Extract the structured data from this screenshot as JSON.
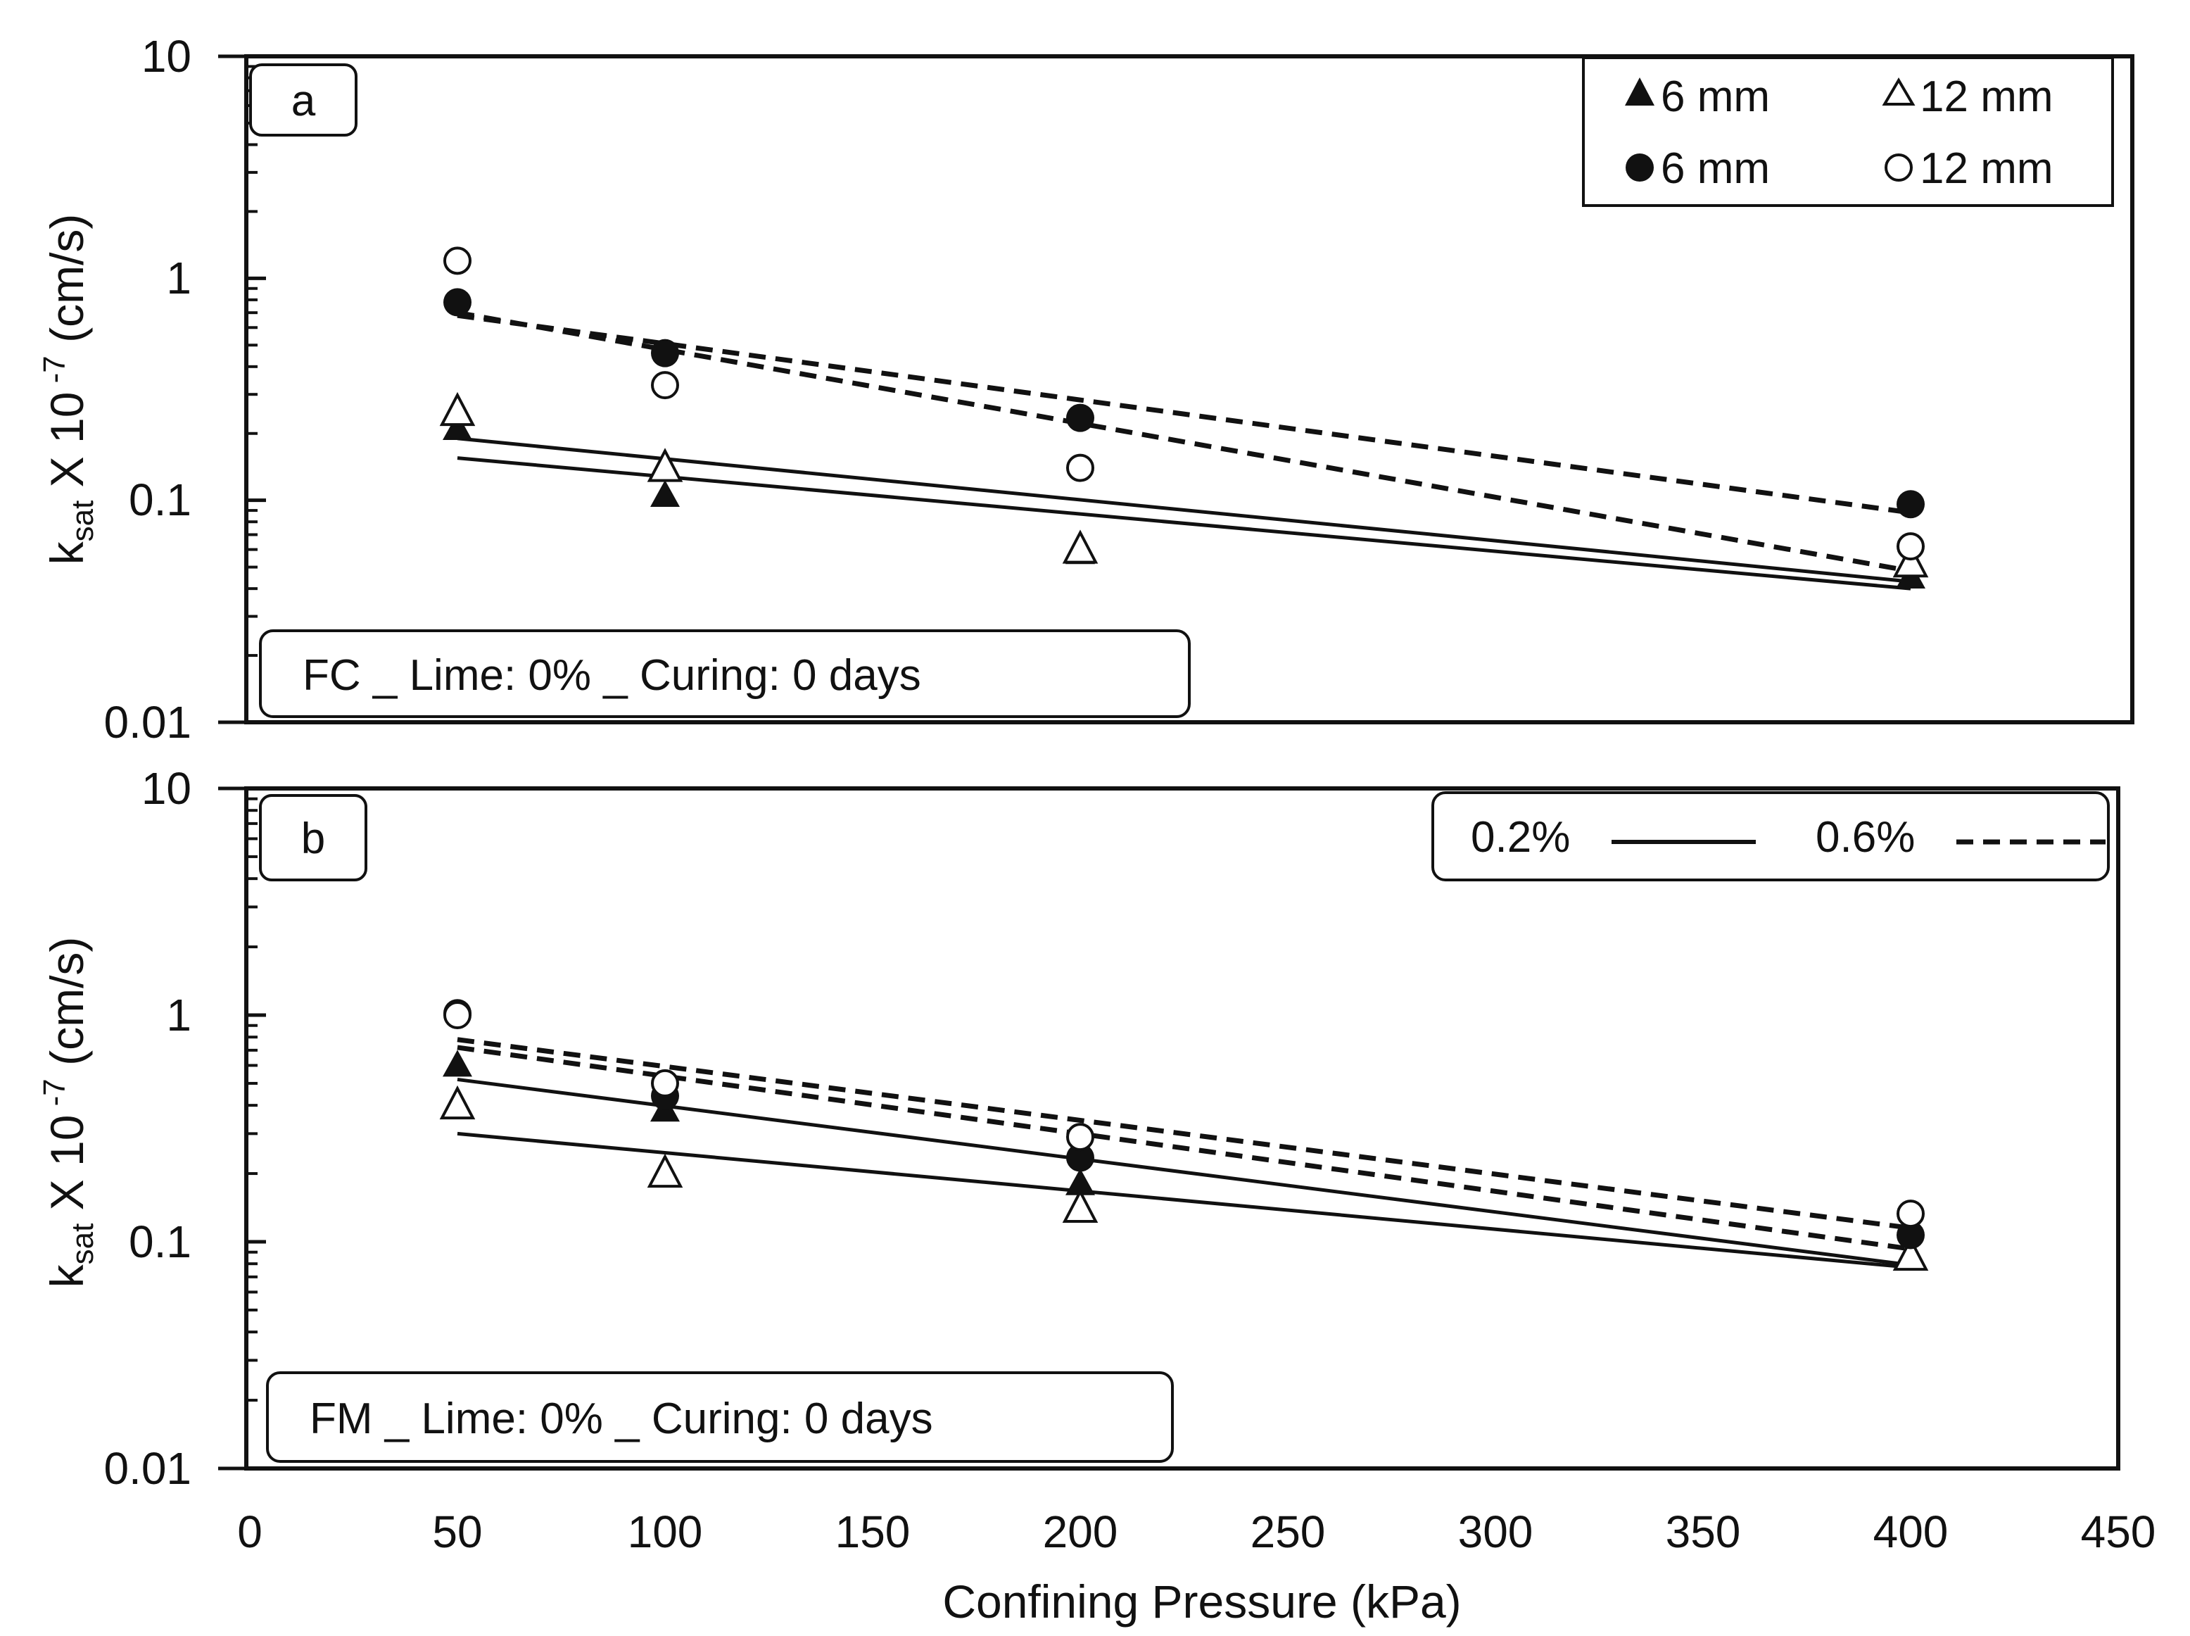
{
  "chart_data": [
    {
      "type": "scatter",
      "panel": "a",
      "annotation": "FC _ Lime: 0% _ Curing: 0 days",
      "ylabel": {
        "main": "k",
        "sub": "sat",
        "rest": " X 10",
        "sup": " -7",
        "unit": " (cm/s)"
      },
      "yscale": "log",
      "ylim": [
        0.01,
        10
      ],
      "yticks": [
        "10",
        "1",
        "0.1",
        "0.01"
      ],
      "xlim": [
        0,
        450
      ],
      "legend": {
        "placement": "top-right",
        "entries": [
          {
            "marker": "filled-triangle",
            "label": "6 mm"
          },
          {
            "marker": "open-triangle",
            "label": "12 mm"
          },
          {
            "marker": "filled-circle",
            "label": "6 mm"
          },
          {
            "marker": "open-circle",
            "label": "12 mm"
          }
        ]
      },
      "series": [
        {
          "marker": "filled-triangle",
          "x": [
            50,
            100,
            200,
            400
          ],
          "y": [
            0.21,
            0.105,
            0.058,
            0.045
          ]
        },
        {
          "marker": "open-triangle",
          "x": [
            50,
            100,
            200,
            400
          ],
          "y": [
            0.25,
            0.14,
            0.06,
            0.052
          ]
        },
        {
          "marker": "filled-circle",
          "x": [
            50,
            100,
            200,
            400
          ],
          "y": [
            0.78,
            0.46,
            0.235,
            0.096
          ]
        },
        {
          "marker": "open-circle",
          "x": [
            50,
            100,
            200,
            400
          ],
          "y": [
            1.2,
            0.33,
            0.14,
            0.062
          ]
        }
      ],
      "trendlines": [
        {
          "style": "solid",
          "x": [
            50,
            400
          ],
          "y": [
            0.155,
            0.04
          ]
        },
        {
          "style": "solid",
          "x": [
            50,
            400
          ],
          "y": [
            0.19,
            0.043
          ]
        },
        {
          "style": "dashed",
          "x": [
            50,
            400
          ],
          "y": [
            0.68,
            0.088
          ]
        },
        {
          "style": "dashed",
          "x": [
            50,
            400
          ],
          "y": [
            0.7,
            0.048
          ]
        }
      ]
    },
    {
      "type": "scatter",
      "panel": "b",
      "annotation": "FM _ Lime: 0% _ Curing: 0 days",
      "ylabel": {
        "main": "k",
        "sub": "sat",
        "rest": " X 10",
        "sup": " -7",
        "unit": " (cm/s)"
      },
      "yscale": "log",
      "ylim": [
        0.01,
        10
      ],
      "yticks": [
        "10",
        "1",
        "0.1",
        "0.01"
      ],
      "xlim": [
        0,
        450
      ],
      "xlabel": "Confining Pressure (kPa)",
      "xticks": [
        "0",
        "50",
        "100",
        "150",
        "200",
        "250",
        "300",
        "350",
        "400",
        "450"
      ],
      "legend": {
        "placement": "top-right",
        "entries": [
          {
            "line": "solid",
            "label": "0.2%"
          },
          {
            "line": "dashed",
            "label": "0.6%"
          }
        ]
      },
      "series": [
        {
          "marker": "filled-triangle",
          "x": [
            50,
            100,
            200,
            400
          ],
          "y": [
            0.6,
            0.38,
            0.18,
            0.085
          ]
        },
        {
          "marker": "open-triangle",
          "x": [
            50,
            100,
            200,
            400
          ],
          "y": [
            0.4,
            0.2,
            0.14,
            0.086
          ]
        },
        {
          "marker": "filled-circle",
          "x": [
            50,
            100,
            200,
            400
          ],
          "y": [
            1.02,
            0.44,
            0.235,
            0.107
          ]
        },
        {
          "marker": "open-circle",
          "x": [
            50,
            100,
            200,
            400
          ],
          "y": [
            1.0,
            0.5,
            0.29,
            0.133
          ]
        }
      ],
      "trendlines": [
        {
          "style": "solid",
          "x": [
            50,
            400
          ],
          "y": [
            0.52,
            0.079
          ]
        },
        {
          "style": "solid",
          "x": [
            50,
            400
          ],
          "y": [
            0.3,
            0.077
          ]
        },
        {
          "style": "dashed",
          "x": [
            50,
            400
          ],
          "y": [
            0.78,
            0.115
          ]
        },
        {
          "style": "dashed",
          "x": [
            50,
            400
          ],
          "y": [
            0.72,
            0.093
          ]
        }
      ]
    }
  ]
}
